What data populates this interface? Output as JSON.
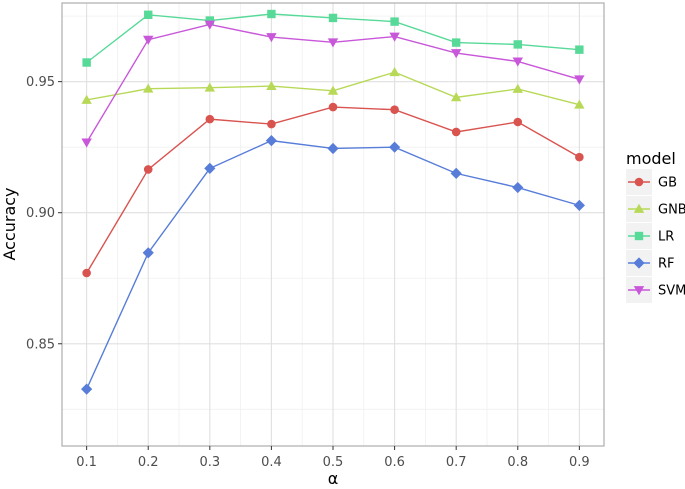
{
  "chart_data": {
    "type": "line",
    "title": "",
    "xlabel": "α",
    "ylabel": "Accuracy",
    "x": [
      0.1,
      0.2,
      0.3,
      0.4,
      0.5,
      0.6,
      0.7,
      0.8,
      0.9
    ],
    "x_tick_labels": [
      "0.1",
      "0.2",
      "0.3",
      "0.4",
      "0.5",
      "0.6",
      "0.7",
      "0.8",
      "0.9"
    ],
    "xlim": [
      0.06,
      0.94
    ],
    "ylim": [
      0.811,
      0.98
    ],
    "y_ticks": [
      0.85,
      0.9,
      0.95
    ],
    "y_tick_labels": [
      "0.85",
      "0.90",
      "0.95"
    ],
    "grid": true,
    "legend": {
      "title": "model",
      "placement": "right"
    },
    "series": [
      {
        "name": "GB",
        "color": "#d9534f",
        "marker": "circle",
        "values": [
          0.877,
          0.9165,
          0.9357,
          0.9338,
          0.9403,
          0.9393,
          0.9308,
          0.9346,
          0.9212
        ]
      },
      {
        "name": "GNB",
        "color": "#b8d957",
        "marker": "triangle-up",
        "values": [
          0.943,
          0.9473,
          0.9477,
          0.9483,
          0.9465,
          0.9536,
          0.944,
          0.9472,
          0.9412
        ]
      },
      {
        "name": "LR",
        "color": "#57d998",
        "marker": "square",
        "values": [
          0.9573,
          0.9755,
          0.9733,
          0.9758,
          0.9743,
          0.9729,
          0.9649,
          0.9642,
          0.9622
        ]
      },
      {
        "name": "RF",
        "color": "#577dd9",
        "marker": "diamond",
        "values": [
          0.8327,
          0.8847,
          0.9169,
          0.9275,
          0.9245,
          0.925,
          0.915,
          0.9096,
          0.9028
        ]
      },
      {
        "name": "SVM",
        "color": "#c857d9",
        "marker": "triangle-down",
        "values": [
          0.9268,
          0.966,
          0.9718,
          0.967,
          0.965,
          0.9672,
          0.9609,
          0.9577,
          0.9509
        ]
      }
    ]
  }
}
